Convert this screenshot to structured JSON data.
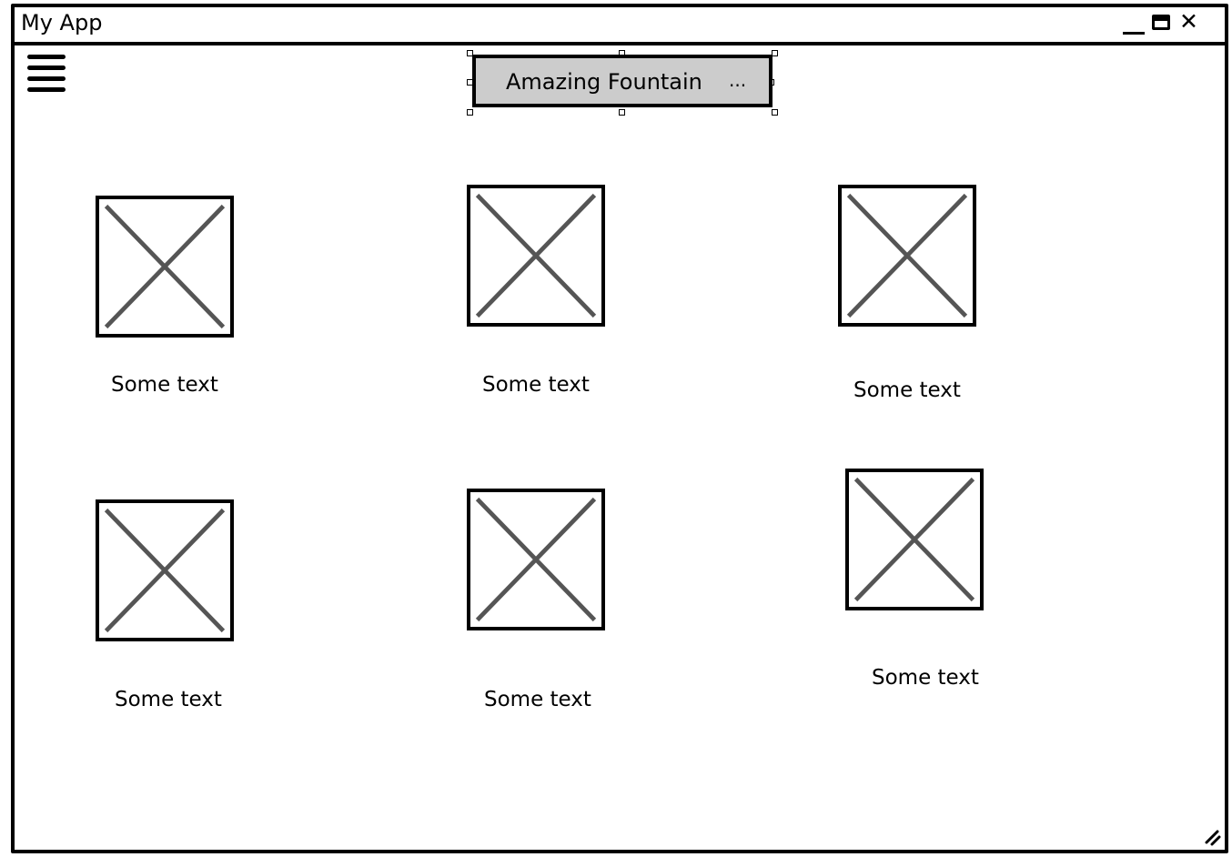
{
  "window": {
    "title": "My App",
    "controls": [
      "minimize-icon",
      "maximize-icon",
      "close-icon"
    ],
    "close_glyph": "✕"
  },
  "menu": {
    "icon": "hamburger-menu-icon"
  },
  "dropdown": {
    "selected": "Amazing Fountain",
    "ellipsis": "...",
    "background": "#cccccc"
  },
  "grid": {
    "items": [
      {
        "caption": "Some text",
        "image": "image-placeholder-icon"
      },
      {
        "caption": "Some text",
        "image": "image-placeholder-icon"
      },
      {
        "caption": "Some text",
        "image": "image-placeholder-icon"
      },
      {
        "caption": "Some text",
        "image": "image-placeholder-icon"
      },
      {
        "caption": "Some text",
        "image": "image-placeholder-icon"
      },
      {
        "caption": "Some text",
        "image": "image-placeholder-icon"
      }
    ]
  },
  "colors": {
    "border": "#000000",
    "placeholder_cross": "#555555",
    "background": "#ffffff"
  }
}
